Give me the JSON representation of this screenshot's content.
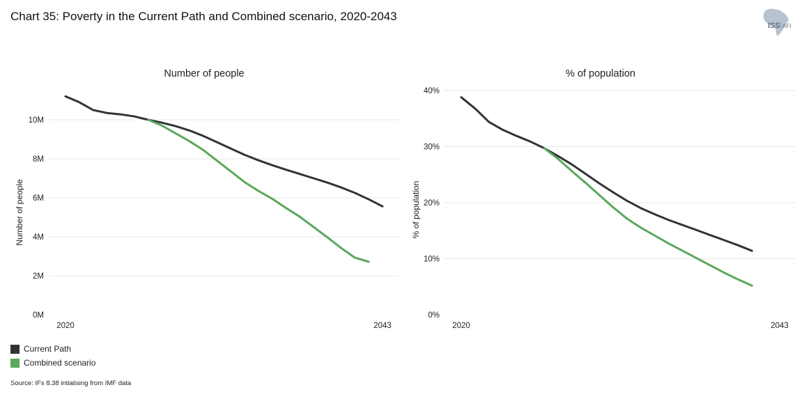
{
  "title": "Chart 35: Poverty in the Current Path and Combined scenario, 2020-2043",
  "logo": {
    "text_main": "ISS",
    "text_sub": "AFI",
    "color": "#8a9bb0"
  },
  "colors": {
    "current_path": "#333333",
    "combined": "#5aa85a",
    "grid": "#e6e6e6"
  },
  "legend": [
    {
      "label": "Current Path",
      "color": "#333333"
    },
    {
      "label": "Combined scenario",
      "color": "#5aa85a"
    }
  ],
  "source": "Source: IFs 8.38 intialising from IMF data",
  "chart_data": [
    {
      "type": "line",
      "title": "Number of people",
      "ylabel": "Number of people",
      "xlabel": "",
      "ylim": [
        0,
        11.5
      ],
      "yticks": [
        {
          "value": 0,
          "label": "0M"
        },
        {
          "value": 2,
          "label": "2M"
        },
        {
          "value": 4,
          "label": "4M"
        },
        {
          "value": 6,
          "label": "6M"
        },
        {
          "value": 8,
          "label": "8M"
        },
        {
          "value": 10,
          "label": "10M"
        }
      ],
      "xticks": [
        {
          "value": 2020,
          "label": "2020"
        },
        {
          "value": 2043,
          "label": "2043"
        }
      ],
      "x": [
        2020,
        2021,
        2022,
        2023,
        2024,
        2025,
        2026,
        2027,
        2028,
        2029,
        2030,
        2031,
        2032,
        2033,
        2034,
        2035,
        2036,
        2037,
        2038,
        2039,
        2040,
        2041,
        2042,
        2043
      ],
      "series": [
        {
          "name": "Current Path",
          "color": "#333333",
          "values": [
            11.2,
            10.9,
            10.5,
            10.35,
            10.28,
            10.17,
            10.0,
            9.85,
            9.67,
            9.45,
            9.17,
            8.85,
            8.52,
            8.2,
            7.92,
            7.67,
            7.44,
            7.22,
            7.0,
            6.78,
            6.53,
            6.25,
            5.92,
            5.56
          ]
        },
        {
          "name": "Combined scenario",
          "color": "#5aa85a",
          "values": [
            null,
            null,
            null,
            null,
            null,
            null,
            10.0,
            9.7,
            9.3,
            8.9,
            8.45,
            7.9,
            7.35,
            6.8,
            6.35,
            5.95,
            5.48,
            5.03,
            4.5,
            3.97,
            3.42,
            2.93,
            2.72,
            null
          ]
        }
      ]
    },
    {
      "type": "line",
      "title": "% of population",
      "ylabel": "% of population",
      "xlabel": "",
      "ylim": [
        0,
        40
      ],
      "yticks": [
        {
          "value": 0,
          "label": "0%"
        },
        {
          "value": 10,
          "label": "10%"
        },
        {
          "value": 20,
          "label": "20%"
        },
        {
          "value": 30,
          "label": "30%"
        },
        {
          "value": 40,
          "label": "40%"
        }
      ],
      "xticks": [
        {
          "value": 2020,
          "label": "2020"
        },
        {
          "value": 2043,
          "label": "2043"
        }
      ],
      "x": [
        2020,
        2021,
        2022,
        2023,
        2024,
        2025,
        2026,
        2027,
        2028,
        2029,
        2030,
        2031,
        2032,
        2033,
        2034,
        2035,
        2036,
        2037,
        2038,
        2039,
        2040,
        2041,
        2042,
        2043
      ],
      "series": [
        {
          "name": "Current Path",
          "color": "#333333",
          "values": [
            38.8,
            36.8,
            34.4,
            33.0,
            31.9,
            30.9,
            29.7,
            28.3,
            26.8,
            25.1,
            23.4,
            21.8,
            20.3,
            19.0,
            17.9,
            16.9,
            16.0,
            15.1,
            14.2,
            13.3,
            12.4,
            11.4,
            null,
            null
          ]
        },
        {
          "name": "Combined scenario",
          "color": "#5aa85a",
          "values": [
            null,
            null,
            null,
            null,
            null,
            null,
            29.7,
            27.8,
            25.6,
            23.5,
            21.3,
            19.1,
            17.1,
            15.5,
            14.1,
            12.7,
            11.4,
            10.1,
            8.8,
            7.5,
            6.3,
            5.2,
            null,
            null
          ]
        }
      ]
    }
  ]
}
